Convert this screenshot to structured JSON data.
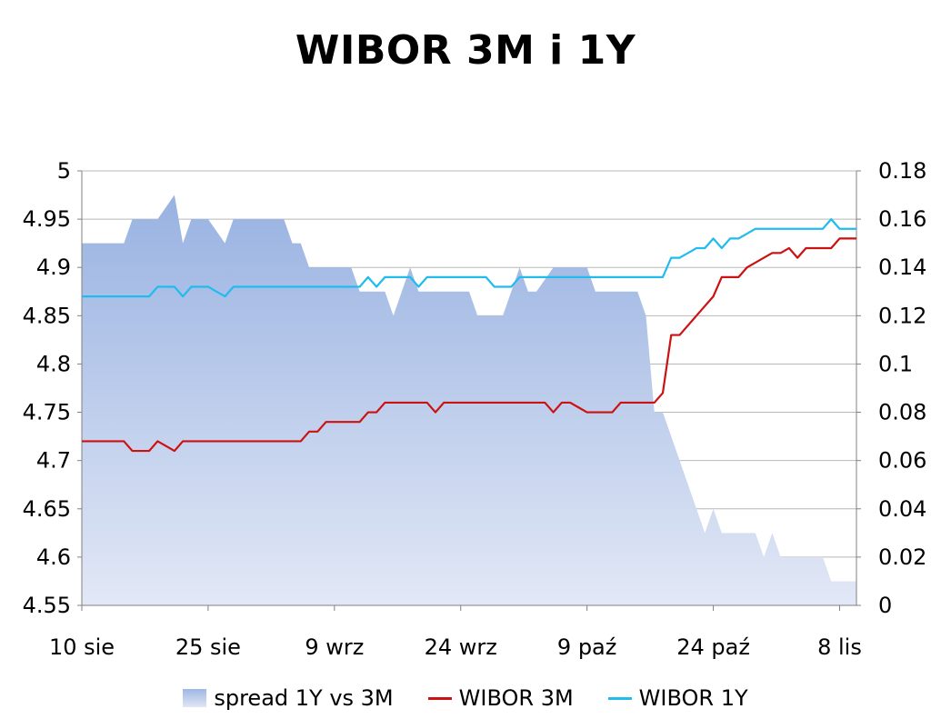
{
  "chart_data": {
    "type": "line",
    "title": "WIBOR 3M i 1Y",
    "x_tick_labels": [
      "10 sie",
      "25 sie",
      "9 wrz",
      "24 wrz",
      "9 paź",
      "24 paź",
      "8 lis"
    ],
    "y_left_ticks": [
      "4.55",
      "4.6",
      "4.65",
      "4.7",
      "4.75",
      "4.8",
      "4.85",
      "4.9",
      "4.95",
      "5"
    ],
    "y_right_ticks": [
      "0",
      "0.02",
      "0.04",
      "0.06",
      "0.08",
      "0.1",
      "0.12",
      "0.14",
      "0.16",
      "0.18"
    ],
    "y_left_range": [
      4.55,
      5
    ],
    "y_right_range": [
      0,
      0.18
    ],
    "grid": "horizontal",
    "legend_position": "bottom",
    "series": [
      {
        "name": "spread 1Y vs 3M",
        "kind": "area",
        "axis": "right",
        "color": "#9fb7e3",
        "x_dates": [
          "10 sie",
          "11 sie",
          "12 sie",
          "13 sie",
          "14 sie",
          "15 sie",
          "16 sie",
          "17 sie",
          "18 sie",
          "19 sie",
          "20 sie",
          "21 sie",
          "22 sie",
          "23 sie",
          "24 sie",
          "25 sie",
          "26 sie",
          "27 sie",
          "28 sie",
          "29 sie",
          "30 sie",
          "31 sie",
          "1 wrz",
          "2 wrz",
          "3 wrz",
          "4 wrz",
          "5 wrz",
          "6 wrz",
          "7 wrz",
          "8 wrz",
          "9 wrz",
          "10 wrz",
          "11 wrz",
          "12 wrz",
          "13 wrz",
          "14 wrz",
          "15 wrz",
          "16 wrz",
          "17 wrz",
          "18 wrz",
          "19 wrz",
          "20 wrz",
          "21 wrz",
          "22 wrz",
          "23 wrz",
          "24 wrz",
          "25 wrz",
          "26 wrz",
          "27 wrz",
          "28 wrz",
          "29 wrz",
          "30 wrz",
          "1 paź",
          "2 paź",
          "3 paź",
          "4 paź",
          "5 paź",
          "6 paź",
          "7 paź",
          "8 paź",
          "9 paź",
          "10 paź",
          "11 paź",
          "12 paź",
          "13 paź",
          "14 paź",
          "15 paź",
          "16 paź",
          "17 paź",
          "18 paź",
          "19 paź",
          "20 paź",
          "21 paź",
          "22 paź",
          "23 paź",
          "24 paź",
          "25 paź",
          "26 paź",
          "27 paź",
          "28 paź",
          "29 paź",
          "30 paź",
          "31 paź",
          "1 lis",
          "2 lis",
          "3 lis",
          "4 lis",
          "5 lis",
          "6 lis",
          "7 lis",
          "8 lis",
          "9 lis",
          "10 lis"
        ],
        "values": [
          0.15,
          0.15,
          0.15,
          0.15,
          0.15,
          0.15,
          0.16,
          0.16,
          0.16,
          0.16,
          0.165,
          0.17,
          0.15,
          0.16,
          0.16,
          0.16,
          0.155,
          0.15,
          0.16,
          0.16,
          0.16,
          0.16,
          0.16,
          0.16,
          0.16,
          0.15,
          0.15,
          0.14,
          0.14,
          0.14,
          0.14,
          0.14,
          0.14,
          0.13,
          0.13,
          0.13,
          0.13,
          0.12,
          0.13,
          0.14,
          0.13,
          0.13,
          0.13,
          0.13,
          0.13,
          0.13,
          0.13,
          0.12,
          0.12,
          0.12,
          0.12,
          0.13,
          0.14,
          0.13,
          0.13,
          0.135,
          0.14,
          0.14,
          0.14,
          0.14,
          0.14,
          0.13,
          0.13,
          0.13,
          0.13,
          0.13,
          0.13,
          0.12,
          0.08,
          0.08,
          0.07,
          0.06,
          0.05,
          0.04,
          0.03,
          0.04,
          0.03,
          0.03,
          0.03,
          0.03,
          0.03,
          0.02,
          0.03,
          0.02,
          0.02,
          0.02,
          0.02,
          0.02,
          0.02,
          0.01,
          0.01,
          0.01,
          0.01
        ]
      },
      {
        "name": "WIBOR 3M",
        "kind": "line",
        "axis": "left",
        "color": "#cc1111",
        "x_dates": [
          "10 sie",
          "11 sie",
          "12 sie",
          "13 sie",
          "14 sie",
          "15 sie",
          "16 sie",
          "17 sie",
          "18 sie",
          "19 sie",
          "20 sie",
          "21 sie",
          "22 sie",
          "23 sie",
          "24 sie",
          "25 sie",
          "26 sie",
          "27 sie",
          "28 sie",
          "29 sie",
          "30 sie",
          "31 sie",
          "1 wrz",
          "2 wrz",
          "3 wrz",
          "4 wrz",
          "5 wrz",
          "6 wrz",
          "7 wrz",
          "8 wrz",
          "9 wrz",
          "10 wrz",
          "11 wrz",
          "12 wrz",
          "13 wrz",
          "14 wrz",
          "15 wrz",
          "16 wrz",
          "17 wrz",
          "18 wrz",
          "19 wrz",
          "20 wrz",
          "21 wrz",
          "22 wrz",
          "23 wrz",
          "24 wrz",
          "25 wrz",
          "26 wrz",
          "27 wrz",
          "28 wrz",
          "29 wrz",
          "30 wrz",
          "1 paź",
          "2 paź",
          "3 paź",
          "4 paź",
          "5 paź",
          "6 paź",
          "7 paź",
          "8 paź",
          "9 paź",
          "10 paź",
          "11 paź",
          "12 paź",
          "13 paź",
          "14 paź",
          "15 paź",
          "16 paź",
          "17 paź",
          "18 paź",
          "19 paź",
          "20 paź",
          "21 paź",
          "22 paź",
          "23 paź",
          "24 paź",
          "25 paź",
          "26 paź",
          "27 paź",
          "28 paź",
          "29 paź",
          "30 paź",
          "31 paź",
          "1 lis",
          "2 lis",
          "3 lis",
          "4 lis",
          "5 lis",
          "6 lis",
          "7 lis",
          "8 lis",
          "9 lis",
          "10 lis"
        ],
        "values": [
          4.72,
          4.72,
          4.72,
          4.72,
          4.72,
          4.72,
          4.71,
          4.71,
          4.71,
          4.72,
          4.715,
          4.71,
          4.72,
          4.72,
          4.72,
          4.72,
          4.72,
          4.72,
          4.72,
          4.72,
          4.72,
          4.72,
          4.72,
          4.72,
          4.72,
          4.72,
          4.72,
          4.73,
          4.73,
          4.74,
          4.74,
          4.74,
          4.74,
          4.74,
          4.75,
          4.75,
          4.76,
          4.76,
          4.76,
          4.76,
          4.76,
          4.76,
          4.75,
          4.76,
          4.76,
          4.76,
          4.76,
          4.76,
          4.76,
          4.76,
          4.76,
          4.76,
          4.76,
          4.76,
          4.76,
          4.76,
          4.75,
          4.76,
          4.76,
          4.755,
          4.75,
          4.75,
          4.75,
          4.75,
          4.76,
          4.76,
          4.76,
          4.76,
          4.76,
          4.77,
          4.83,
          4.83,
          4.84,
          4.85,
          4.86,
          4.87,
          4.89,
          4.89,
          4.89,
          4.9,
          4.905,
          4.91,
          4.915,
          4.915,
          4.92,
          4.91,
          4.92,
          4.92,
          4.92,
          4.92,
          4.93,
          4.93,
          4.93
        ]
      },
      {
        "name": "WIBOR 1Y",
        "kind": "line",
        "axis": "left",
        "color": "#22bbee",
        "x_dates": [
          "10 sie",
          "11 sie",
          "12 sie",
          "13 sie",
          "14 sie",
          "15 sie",
          "16 sie",
          "17 sie",
          "18 sie",
          "19 sie",
          "20 sie",
          "21 sie",
          "22 sie",
          "23 sie",
          "24 sie",
          "25 sie",
          "26 sie",
          "27 sie",
          "28 sie",
          "29 sie",
          "30 sie",
          "31 sie",
          "1 wrz",
          "2 wrz",
          "3 wrz",
          "4 wrz",
          "5 wrz",
          "6 wrz",
          "7 wrz",
          "8 wrz",
          "9 wrz",
          "10 wrz",
          "11 wrz",
          "12 wrz",
          "13 wrz",
          "14 wrz",
          "15 wrz",
          "16 wrz",
          "17 wrz",
          "18 wrz",
          "19 wrz",
          "20 wrz",
          "21 wrz",
          "22 wrz",
          "23 wrz",
          "24 wrz",
          "25 wrz",
          "26 wrz",
          "27 wrz",
          "28 wrz",
          "29 wrz",
          "30 wrz",
          "1 paź",
          "2 paź",
          "3 paź",
          "4 paź",
          "5 paź",
          "6 paź",
          "7 paź",
          "8 paź",
          "9 paź",
          "10 paź",
          "11 paź",
          "12 paź",
          "13 paź",
          "14 paź",
          "15 paź",
          "16 paź",
          "17 paź",
          "18 paź",
          "19 paź",
          "20 paź",
          "21 paź",
          "22 paź",
          "23 paź",
          "24 paź",
          "25 paź",
          "26 paź",
          "27 paź",
          "28 paź",
          "29 paź",
          "30 paź",
          "31 paź",
          "1 lis",
          "2 lis",
          "3 lis",
          "4 lis",
          "5 lis",
          "6 lis",
          "7 lis",
          "8 lis",
          "9 lis",
          "10 lis"
        ],
        "values": [
          4.87,
          4.87,
          4.87,
          4.87,
          4.87,
          4.87,
          4.87,
          4.87,
          4.87,
          4.88,
          4.88,
          4.88,
          4.87,
          4.88,
          4.88,
          4.88,
          4.875,
          4.87,
          4.88,
          4.88,
          4.88,
          4.88,
          4.88,
          4.88,
          4.88,
          4.88,
          4.88,
          4.88,
          4.88,
          4.88,
          4.88,
          4.88,
          4.88,
          4.88,
          4.89,
          4.88,
          4.89,
          4.89,
          4.89,
          4.89,
          4.88,
          4.89,
          4.89,
          4.89,
          4.89,
          4.89,
          4.89,
          4.89,
          4.89,
          4.88,
          4.88,
          4.88,
          4.89,
          4.89,
          4.89,
          4.89,
          4.89,
          4.89,
          4.89,
          4.89,
          4.89,
          4.89,
          4.89,
          4.89,
          4.89,
          4.89,
          4.89,
          4.89,
          4.89,
          4.89,
          4.91,
          4.91,
          4.915,
          4.92,
          4.92,
          4.93,
          4.92,
          4.93,
          4.93,
          4.935,
          4.94,
          4.94,
          4.94,
          4.94,
          4.94,
          4.94,
          4.94,
          4.94,
          4.94,
          4.95,
          4.94,
          4.94,
          4.94
        ]
      }
    ]
  }
}
